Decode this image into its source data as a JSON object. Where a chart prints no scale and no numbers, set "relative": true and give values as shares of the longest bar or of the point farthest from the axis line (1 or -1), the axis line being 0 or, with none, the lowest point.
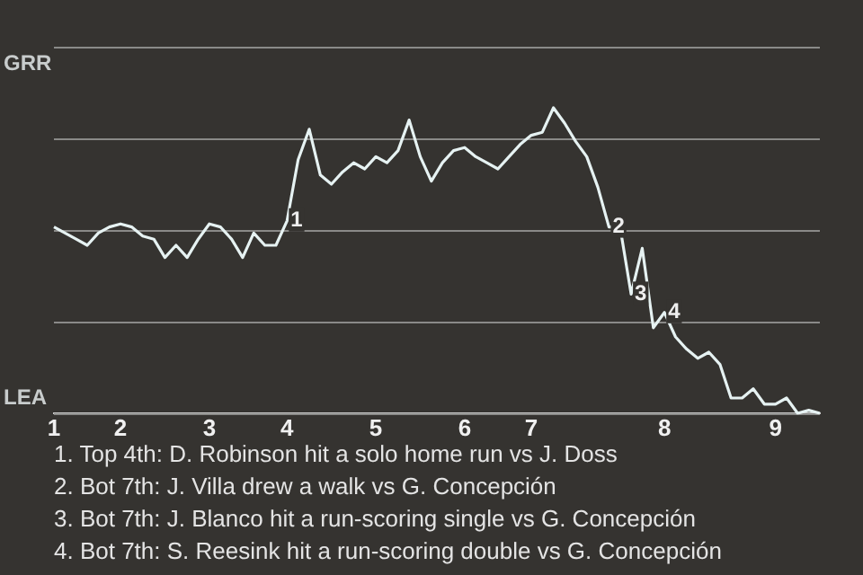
{
  "chart_data": {
    "type": "line",
    "relative": true,
    "categories": [
      "1",
      null,
      null,
      null,
      null,
      null,
      "2",
      null,
      null,
      null,
      null,
      null,
      null,
      null,
      "3",
      null,
      null,
      null,
      null,
      null,
      null,
      "4",
      null,
      null,
      null,
      null,
      null,
      null,
      null,
      "5",
      null,
      null,
      null,
      null,
      null,
      null,
      null,
      "6",
      null,
      null,
      null,
      null,
      null,
      "7",
      null,
      null,
      null,
      null,
      null,
      null,
      null,
      null,
      null,
      null,
      null,
      "8",
      null,
      null,
      null,
      null,
      null,
      null,
      null,
      null,
      null,
      "9",
      null,
      null,
      null,
      null
    ],
    "series": [
      {
        "color": "#e6f2f2",
        "values": [
          0.61,
          0.59,
          0.57,
          0.55,
          0.59,
          0.61,
          0.62,
          0.61,
          0.58,
          0.57,
          0.51,
          0.55,
          0.51,
          0.57,
          0.62,
          0.61,
          0.57,
          0.51,
          0.59,
          0.55,
          0.55,
          0.63,
          0.83,
          0.93,
          0.78,
          0.75,
          0.79,
          0.82,
          0.8,
          0.84,
          0.82,
          0.86,
          0.96,
          0.84,
          0.76,
          0.82,
          0.86,
          0.87,
          0.84,
          0.82,
          0.8,
          0.84,
          0.88,
          0.91,
          0.92,
          1,
          0.95,
          0.89,
          0.84,
          0.74,
          0.61,
          0.61,
          0.39,
          0.54,
          0.28,
          0.33,
          0.25,
          0.21,
          0.18,
          0.2,
          0.16,
          0.05,
          0.05,
          0.08,
          0.03,
          0.03,
          0.05,
          0,
          0.01,
          0
        ],
        "name": null
      }
    ],
    "grid": "y",
    "annotations": [
      "GRR",
      "LEA",
      {
        "text": "1",
        "y": 0.63
      },
      {
        "text": "2",
        "y": 0.61
      },
      {
        "text": "3",
        "y": 0.39
      },
      {
        "text": "4",
        "y": 0.33
      },
      "1. Top 4th: D. Robinson hit a solo home run vs J. Doss",
      "2. Bot 7th: J. Villa drew a walk vs G. Concepción",
      "3. Bot 7th: J. Blanco hit a run-scoring single vs G. Concepción",
      "4. Bot 7th: S. Reesink hit a run-scoring double vs G. Concepción"
    ]
  }
}
